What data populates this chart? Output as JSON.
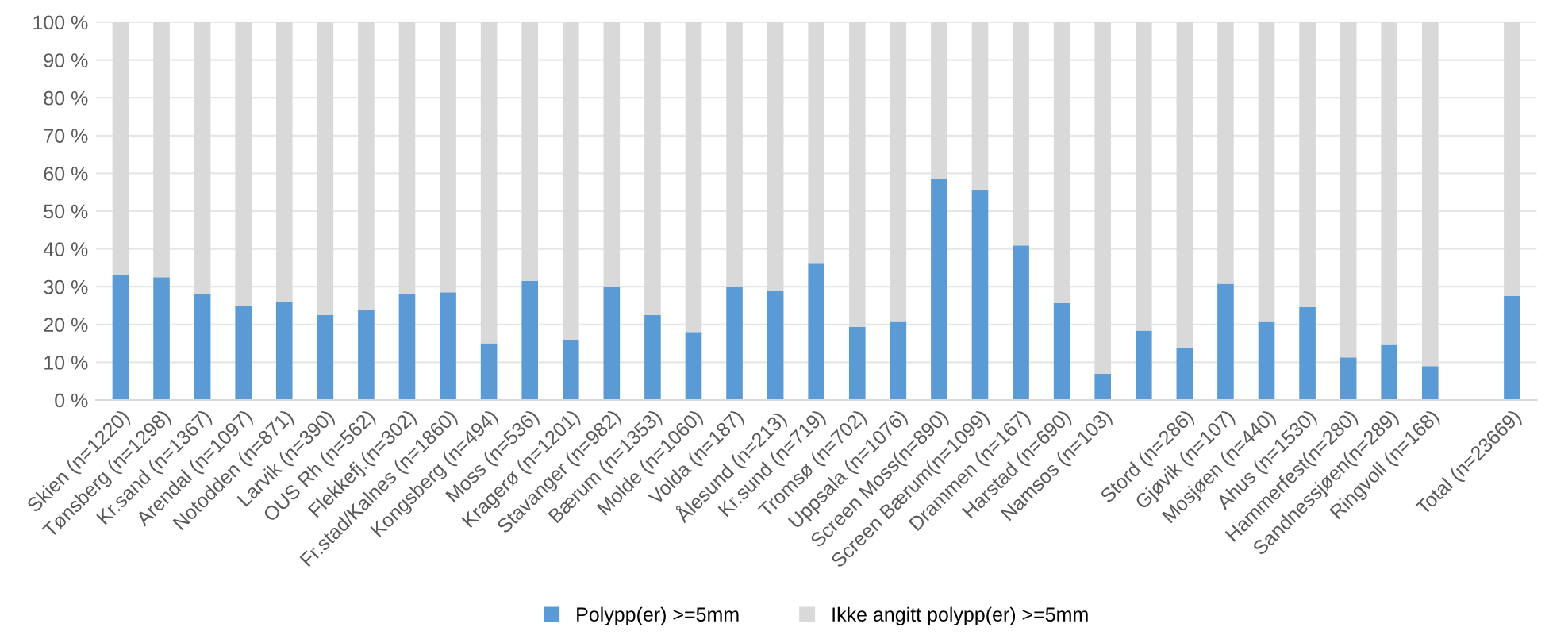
{
  "chart_data": {
    "type": "bar",
    "stacked": true,
    "categories": [
      "Skien (n=1220)",
      "Tønsberg (n=1298)",
      "Kr.sand (n=1367)",
      "Arendal (n=1097)",
      "Notodden (n=871)",
      "Larvik (n=390)",
      "OUS Rh (n=562)",
      "Flekkefj.(n=302)",
      "Fr.stad/Kalnes (n=1860)",
      "Kongsberg (n=494)",
      "Moss (n=536)",
      "Kragerø (n=1201)",
      "Stavanger (n=982)",
      "Bærum (n=1353)",
      "Molde (n=1060)",
      "Volda (n=187)",
      "Ålesund (n=213)",
      "Kr.sund (n=719)",
      "Tromsø (n=702)",
      "Uppsala (n=1076)",
      "Screen Moss(n=890)",
      "Screen Bærum(n=1099)",
      "Drammen (n=167)",
      "Harstad (n=690)",
      "Namsos (n=103)",
      null,
      "Stord (n=286)",
      "Gjøvik (n=107)",
      "Mosjøen (n=440)",
      "Ahus (n=1530)",
      "Hammerfest(n=280)",
      "Sandnessjøen(n=289)",
      "Ringvoll (n=168)",
      null,
      "Total (n=23669)"
    ],
    "series": [
      {
        "name": "Polypp(er) >=5mm",
        "color": "#5b9bd5",
        "values": [
          33,
          32.5,
          28,
          25,
          26,
          22.5,
          24,
          28,
          28.5,
          15,
          31.5,
          16,
          30,
          22.5,
          18,
          30,
          28.8,
          36.3,
          19.4,
          20.7,
          58.6,
          55.7,
          40.9,
          25.7,
          7,
          18.4,
          13.9,
          30.8,
          20.7,
          24.6,
          11.3,
          14.6,
          9,
          null,
          27.5
        ]
      },
      {
        "name": "Ikke angitt polypp(er) >=5mm",
        "color": "#d9d9d9",
        "values": [
          67,
          67.5,
          72,
          75,
          74,
          77.5,
          76,
          72,
          71.5,
          85,
          68.5,
          84,
          70,
          77.5,
          82,
          70,
          71.2,
          63.7,
          80.6,
          79.3,
          41.4,
          44.3,
          59.1,
          74.3,
          93,
          81.6,
          86.1,
          69.2,
          79.3,
          75.4,
          88.7,
          85.4,
          91,
          null,
          72.5
        ]
      }
    ],
    "ylim": [
      0,
      100
    ],
    "yticks": [
      {
        "value": 0,
        "label": "0 %"
      },
      {
        "value": 10,
        "label": "10 %"
      },
      {
        "value": 20,
        "label": "20 %"
      },
      {
        "value": 30,
        "label": "30 %"
      },
      {
        "value": 40,
        "label": "40 %"
      },
      {
        "value": 50,
        "label": "50 %"
      },
      {
        "value": 60,
        "label": "60 %"
      },
      {
        "value": 70,
        "label": "70 %"
      },
      {
        "value": 80,
        "label": "80 %"
      },
      {
        "value": 90,
        "label": "90 %"
      },
      {
        "value": 100,
        "label": "100 %"
      }
    ],
    "grid": "y",
    "legend": "bottom"
  }
}
